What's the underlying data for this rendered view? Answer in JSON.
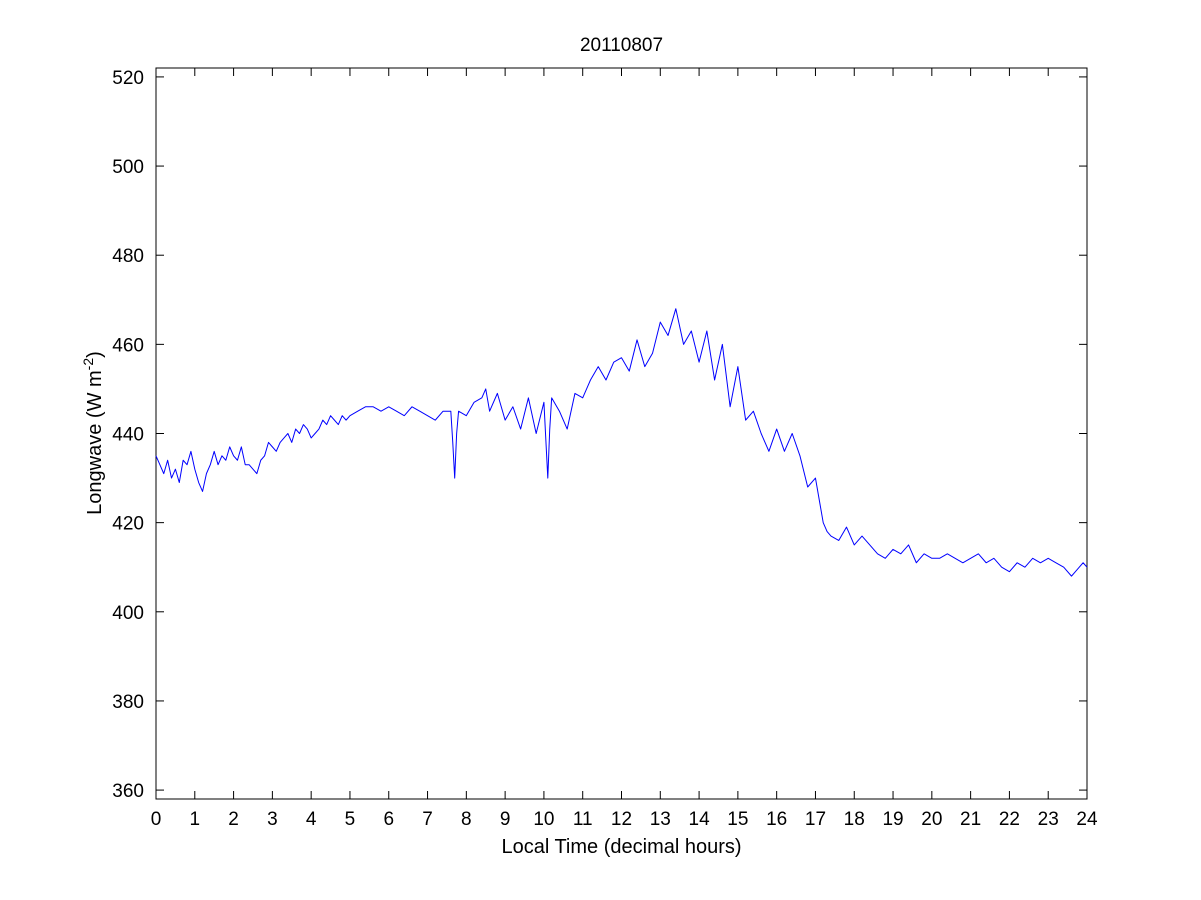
{
  "chart_data": {
    "type": "line",
    "title": "20110807",
    "xlabel": "Local Time (decimal hours)",
    "ylabel": {
      "main": "Longwave (W m",
      "sup": "-2",
      "close": ")"
    },
    "xlim": [
      0,
      24
    ],
    "ylim": [
      358,
      522
    ],
    "xticks": [
      "0",
      "1",
      "2",
      "3",
      "4",
      "5",
      "6",
      "7",
      "8",
      "9",
      "10",
      "11",
      "12",
      "13",
      "14",
      "15",
      "16",
      "17",
      "18",
      "19",
      "20",
      "21",
      "22",
      "23",
      "24"
    ],
    "yticks": [
      "360",
      "380",
      "400",
      "420",
      "440",
      "460",
      "480",
      "500",
      "520"
    ],
    "grid": false,
    "line_color": "#0000ff",
    "series": [
      {
        "x": [
          0,
          0.1,
          0.2,
          0.3,
          0.4,
          0.5,
          0.6,
          0.7,
          0.8,
          0.9,
          1,
          1.1,
          1.2,
          1.3,
          1.4,
          1.5,
          1.6,
          1.7,
          1.8,
          1.9,
          2,
          2.1,
          2.2,
          2.3,
          2.4,
          2.5,
          2.6,
          2.7,
          2.8,
          2.9,
          3,
          3.1,
          3.2,
          3.3,
          3.4,
          3.5,
          3.6,
          3.7,
          3.8,
          3.9,
          4,
          4.1,
          4.2,
          4.3,
          4.4,
          4.5,
          4.6,
          4.7,
          4.8,
          4.9,
          5,
          5.2,
          5.4,
          5.6,
          5.8,
          6,
          6.2,
          6.4,
          6.6,
          6.8,
          7,
          7.2,
          7.4,
          7.6,
          7.65,
          7.7,
          7.75,
          7.8,
          8,
          8.2,
          8.4,
          8.5,
          8.6,
          8.8,
          9,
          9.2,
          9.4,
          9.6,
          9.8,
          10,
          10.1,
          10.15,
          10.2,
          10.4,
          10.6,
          10.8,
          11,
          11.2,
          11.4,
          11.6,
          11.8,
          12,
          12.2,
          12.4,
          12.6,
          12.8,
          13,
          13.2,
          13.4,
          13.6,
          13.8,
          14,
          14.2,
          14.4,
          14.6,
          14.8,
          15,
          15.2,
          15.4,
          15.6,
          15.8,
          16,
          16.2,
          16.4,
          16.6,
          16.8,
          17,
          17.1,
          17.2,
          17.3,
          17.4,
          17.6,
          17.8,
          18,
          18.2,
          18.4,
          18.6,
          18.8,
          19,
          19.2,
          19.4,
          19.6,
          19.8,
          20,
          20.2,
          20.4,
          20.6,
          20.8,
          21,
          21.2,
          21.4,
          21.6,
          21.8,
          22,
          22.2,
          22.4,
          22.6,
          22.8,
          23,
          23.2,
          23.4,
          23.6,
          23.7,
          23.8,
          23.9,
          24
        ],
        "y": [
          435,
          433,
          431,
          434,
          430,
          432,
          429,
          434,
          433,
          436,
          432,
          429,
          427,
          431,
          433,
          436,
          433,
          435,
          434,
          437,
          435,
          434,
          437,
          433,
          433,
          432,
          431,
          434,
          435,
          438,
          437,
          436,
          438,
          439,
          440,
          438,
          441,
          440,
          442,
          441,
          439,
          440,
          441,
          443,
          442,
          444,
          443,
          442,
          444,
          443,
          444,
          445,
          446,
          446,
          445,
          446,
          445,
          444,
          446,
          445,
          444,
          443,
          445,
          445,
          438,
          430,
          440,
          445,
          444,
          447,
          448,
          450,
          445,
          449,
          443,
          446,
          441,
          448,
          440,
          447,
          430,
          441,
          448,
          445,
          441,
          449,
          448,
          452,
          455,
          452,
          456,
          457,
          454,
          461,
          455,
          458,
          465,
          462,
          468,
          460,
          463,
          456,
          463,
          452,
          460,
          446,
          455,
          443,
          445,
          440,
          436,
          441,
          436,
          440,
          435,
          428,
          430,
          425,
          420,
          418,
          417,
          416,
          419,
          415,
          417,
          415,
          413,
          412,
          414,
          413,
          415,
          411,
          413,
          412,
          412,
          413,
          412,
          411,
          412,
          413,
          411,
          412,
          410,
          409,
          411,
          410,
          412,
          411,
          412,
          411,
          410,
          408,
          409,
          410,
          411,
          410
        ]
      }
    ]
  }
}
